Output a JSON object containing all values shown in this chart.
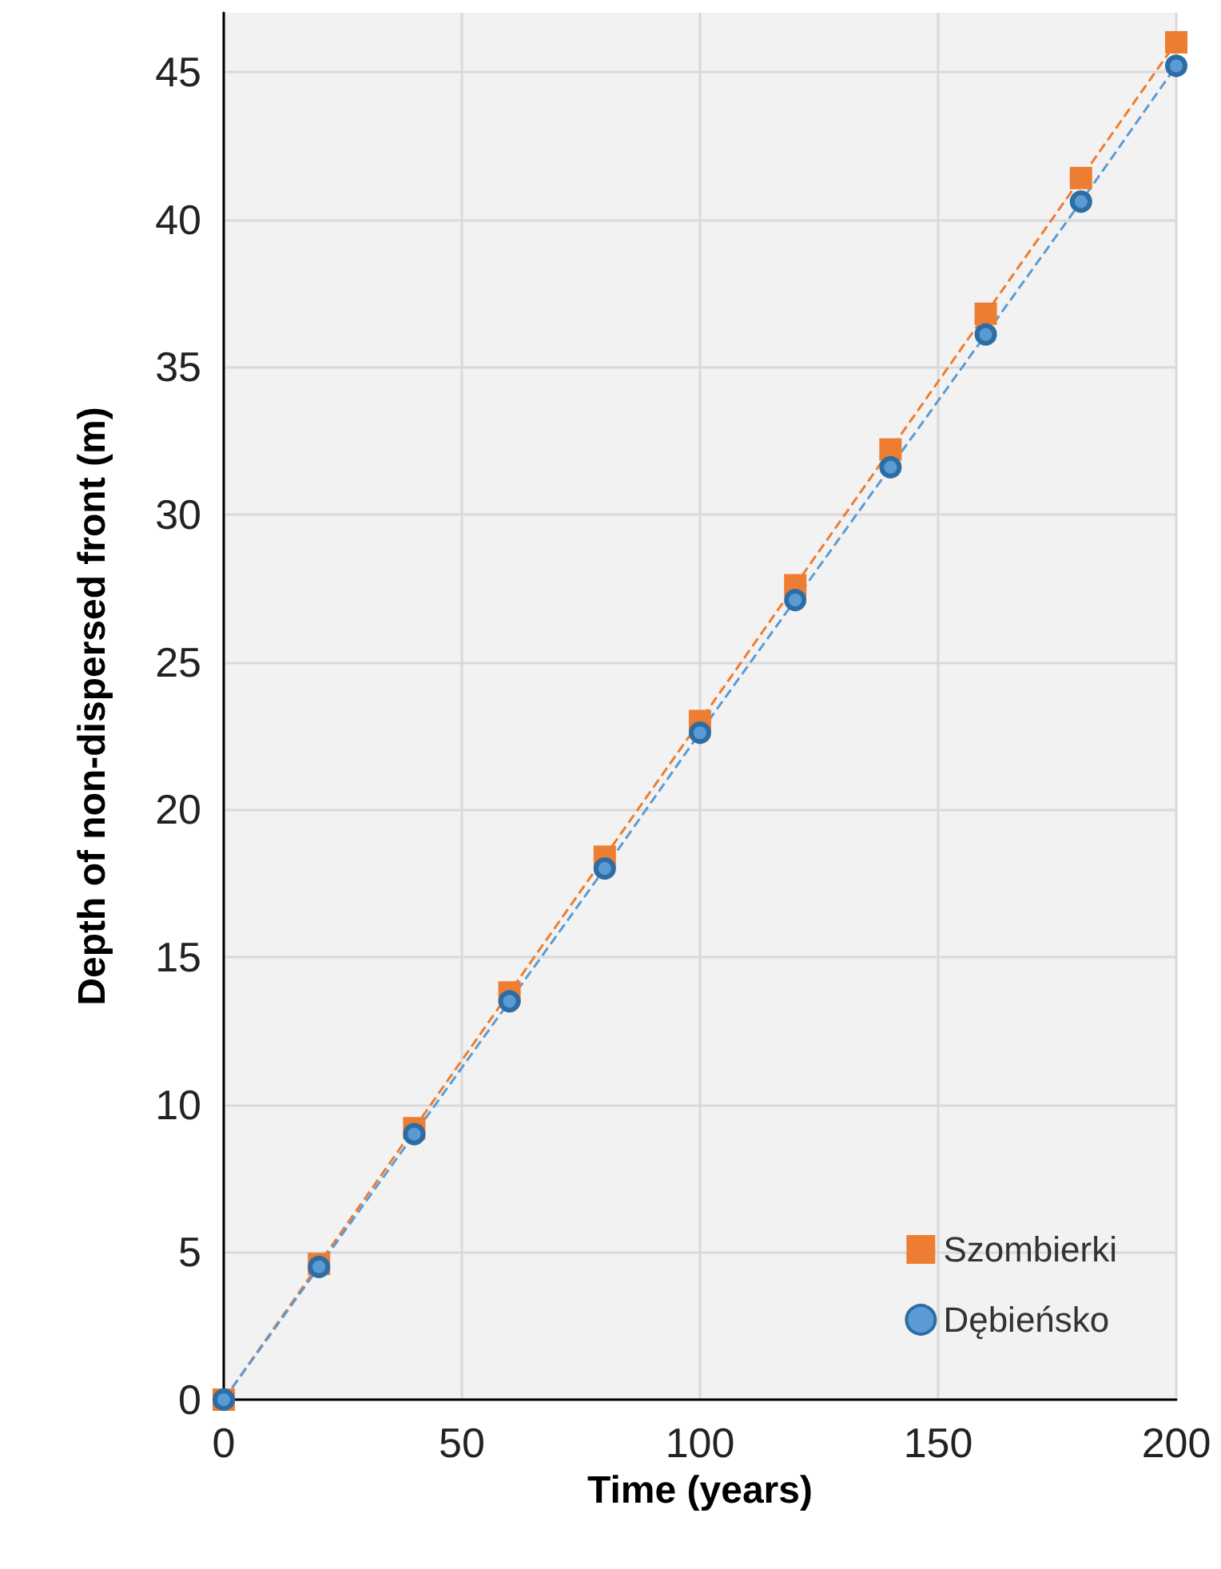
{
  "chart_data": {
    "type": "line",
    "xlabel": "Time (years)",
    "ylabel": "Depth of non-dispersed front (m)",
    "x": [
      0,
      20,
      40,
      60,
      80,
      100,
      120,
      140,
      160,
      180,
      200
    ],
    "series": [
      {
        "name": "Szombierki",
        "color": "#ed7d31",
        "marker": "square",
        "values": [
          0,
          4.6,
          9.2,
          13.8,
          18.4,
          23,
          27.6,
          32.2,
          36.8,
          41.4,
          46
        ]
      },
      {
        "name": "Dębieńsko",
        "color": "#5b9bd5",
        "marker": "circle",
        "values": [
          0,
          4.5,
          9,
          13.5,
          18,
          22.6,
          27.1,
          31.6,
          36.1,
          40.6,
          45.2
        ]
      }
    ],
    "xlim": [
      0,
      200
    ],
    "xticks": [
      0,
      50,
      100,
      150,
      200
    ],
    "ylim": [
      0,
      47
    ],
    "yticks": [
      0,
      5,
      10,
      15,
      20,
      25,
      30,
      35,
      40,
      45
    ],
    "grid": true,
    "legend": "bottom right",
    "line_style": "dashed"
  }
}
